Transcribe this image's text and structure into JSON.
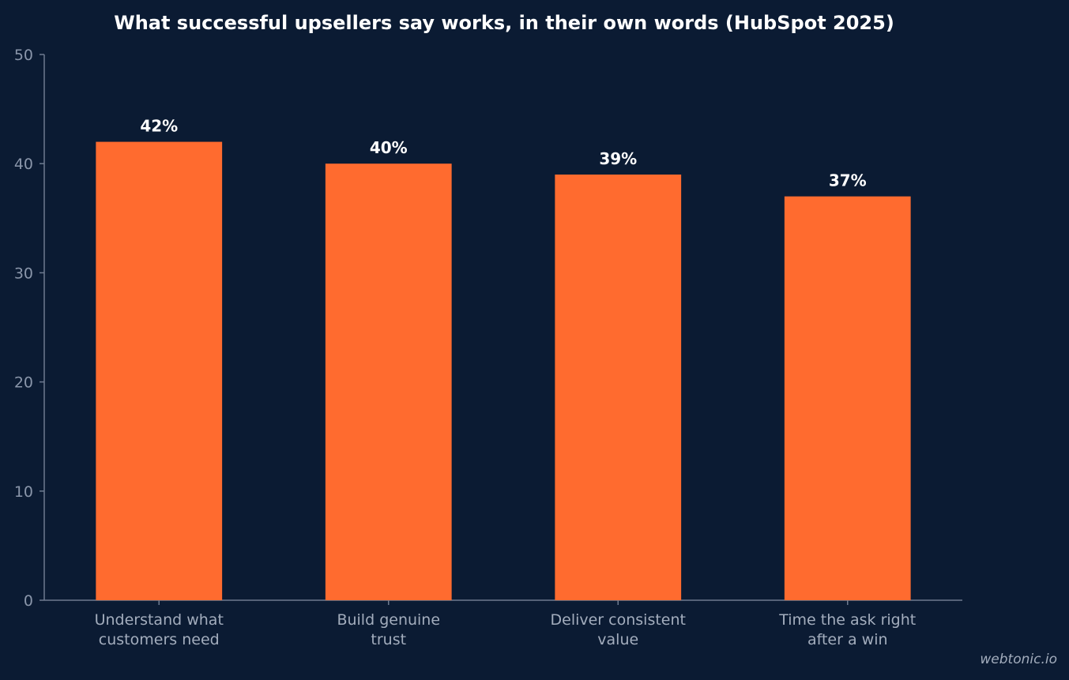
{
  "chart_data": {
    "type": "bar",
    "title": "What successful upsellers say works, in their own words (HubSpot 2025)",
    "categories": [
      [
        "Understand what",
        "customers need"
      ],
      [
        "Build genuine",
        "trust"
      ],
      [
        "Deliver consistent",
        "value"
      ],
      [
        "Time the ask right",
        "after a win"
      ]
    ],
    "values": [
      42,
      40,
      39,
      37
    ],
    "data_labels": [
      "42%",
      "40%",
      "39%",
      "37%"
    ],
    "yticks": [
      "0",
      "10",
      "20",
      "30",
      "40",
      "50"
    ],
    "ylim": [
      0,
      50
    ],
    "xlabel": "",
    "ylabel": "",
    "grid": false,
    "bar_color": "#ff6b2f",
    "background_color": "#0b1b33"
  },
  "watermark": "webtonic.io"
}
